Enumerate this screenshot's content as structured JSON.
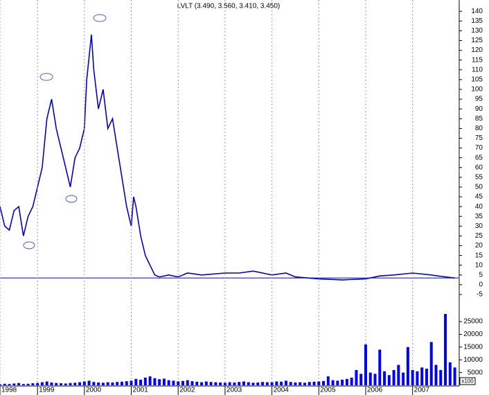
{
  "chart_data": [
    {
      "type": "line",
      "title": "LVLT (3.490, 3.560, 3.410, 3.450)",
      "color": "#0000cc",
      "x": [
        1998.2,
        1998.3,
        1998.4,
        1998.5,
        1998.6,
        1998.7,
        1998.8,
        1998.9,
        1999.0,
        1999.1,
        1999.2,
        1999.3,
        1999.4,
        1999.5,
        1999.6,
        1999.7,
        1999.8,
        1999.9,
        2000.0,
        2000.05,
        2000.15,
        2000.2,
        2000.3,
        2000.4,
        2000.5,
        2000.6,
        2000.7,
        2000.8,
        2000.9,
        2001.0,
        2001.05,
        2001.1,
        2001.2,
        2001.3,
        2001.4,
        2001.5,
        2001.6,
        2001.8,
        2002.0,
        2002.2,
        2002.5,
        2003.0,
        2003.3,
        2003.6,
        2004.0,
        2004.3,
        2004.5,
        2005.0,
        2005.5,
        2006.0,
        2006.3,
        2006.6,
        2007.0,
        2007.4,
        2007.7,
        2007.9
      ],
      "values": [
        40,
        30,
        28,
        38,
        40,
        25,
        35,
        40,
        50,
        60,
        85,
        95,
        80,
        70,
        60,
        50,
        65,
        70,
        80,
        105,
        128,
        110,
        90,
        100,
        80,
        85,
        70,
        55,
        40,
        30,
        45,
        40,
        25,
        15,
        10,
        5,
        4,
        5,
        4,
        6,
        5,
        6,
        6,
        7,
        5,
        6,
        4,
        3,
        2.5,
        3,
        4.5,
        5,
        6,
        5,
        4,
        3.45
      ],
      "hline": 3.45,
      "xlim": [
        1998.2,
        2007.98
      ],
      "ylim": [
        -5,
        141
      ],
      "yticks": [
        140,
        135,
        130,
        125,
        120,
        115,
        110,
        105,
        100,
        95,
        90,
        85,
        80,
        75,
        70,
        65,
        60,
        55,
        50,
        45,
        40,
        35,
        30,
        25,
        20,
        15,
        10,
        5,
        0,
        -5
      ]
    },
    {
      "type": "bar",
      "color": "#0000ff",
      "unit_label": "x100",
      "grid": true,
      "x": [
        1998.2,
        1998.3,
        1998.4,
        1998.5,
        1998.6,
        1998.7,
        1998.8,
        1998.9,
        1999.0,
        1999.1,
        1999.2,
        1999.3,
        1999.4,
        1999.5,
        1999.6,
        1999.7,
        1999.8,
        1999.9,
        2000.0,
        2000.1,
        2000.2,
        2000.3,
        2000.4,
        2000.5,
        2000.6,
        2000.7,
        2000.8,
        2000.9,
        2001.0,
        2001.1,
        2001.2,
        2001.3,
        2001.4,
        2001.5,
        2001.6,
        2001.7,
        2001.8,
        2001.9,
        2002.0,
        2002.1,
        2002.2,
        2002.3,
        2002.4,
        2002.5,
        2002.6,
        2002.7,
        2002.8,
        2002.9,
        2003.0,
        2003.1,
        2003.2,
        2003.3,
        2003.4,
        2003.5,
        2003.6,
        2003.7,
        2003.8,
        2003.9,
        2004.0,
        2004.1,
        2004.2,
        2004.3,
        2004.4,
        2004.5,
        2004.6,
        2004.7,
        2004.8,
        2004.9,
        2005.0,
        2005.1,
        2005.2,
        2005.3,
        2005.4,
        2005.5,
        2005.6,
        2005.7,
        2005.8,
        2005.9,
        2006.0,
        2006.1,
        2006.2,
        2006.3,
        2006.4,
        2006.5,
        2006.6,
        2006.7,
        2006.8,
        2006.9,
        2007.0,
        2007.1,
        2007.2,
        2007.3,
        2007.4,
        2007.5,
        2007.6,
        2007.7,
        2007.8,
        2007.9
      ],
      "values": [
        400,
        600,
        500,
        700,
        900,
        500,
        600,
        800,
        900,
        1200,
        1500,
        1100,
        900,
        800,
        700,
        900,
        1000,
        1200,
        1500,
        1800,
        1300,
        1100,
        1000,
        1200,
        1100,
        1300,
        1400,
        1600,
        1800,
        2500,
        2200,
        3000,
        3500,
        2800,
        2400,
        2600,
        2000,
        1800,
        1500,
        1700,
        2000,
        1600,
        1400,
        1200,
        1500,
        1300,
        1200,
        1100,
        1000,
        1200,
        1100,
        1300,
        1500,
        1200,
        1000,
        1100,
        1300,
        1200,
        1200,
        1500,
        1400,
        1800,
        1300,
        1100,
        1200,
        1000,
        1300,
        1400,
        1500,
        1700,
        3500,
        2000,
        1800,
        2200,
        2500,
        3000,
        6000,
        4500,
        16000,
        5000,
        4500,
        14000,
        5500,
        4000,
        6000,
        8000,
        5000,
        15000,
        6000,
        5500,
        7000,
        6500,
        17000,
        8000,
        6000,
        28000,
        9000,
        7000
      ],
      "xlim": [
        1998.2,
        2007.98
      ],
      "ylim": [
        0,
        31000
      ],
      "yticks": [
        25000,
        20000,
        15000,
        10000,
        5000
      ],
      "xticks": [
        {
          "value": 1998.2,
          "label": "1998"
        },
        1999,
        2000,
        2001,
        2002,
        2003,
        2004,
        2005,
        2006,
        2007
      ]
    }
  ]
}
